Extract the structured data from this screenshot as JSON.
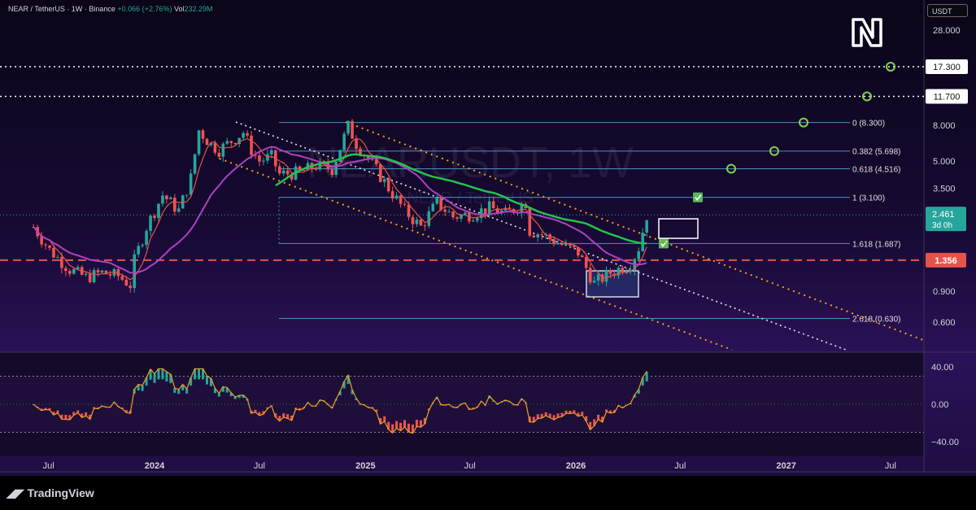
{
  "header": {
    "title": "NEAR / TetherUS · 1W · Binance",
    "change": "+0.066 (+2.76%)",
    "volume_label": "Vol",
    "volume_value": "232.29M"
  },
  "currency_badge": "USDT",
  "watermark": {
    "symbol": "NEARUSDT, 1W",
    "sub": "NEAR / TetherUS"
  },
  "brand": "TradingView",
  "colors": {
    "up": "#26a69a",
    "down": "#ef5350",
    "ma_green": "#22c44a",
    "ma_magenta": "#b040c0",
    "ma_red": "#e5534b",
    "fib": "#4a90c8",
    "channel": "#f0a020",
    "trend": "#e6e6e6",
    "level": "#e5534b"
  },
  "chart_data": [
    {
      "type": "candlestick",
      "title": "NEAR / TetherUS · 1W · Binance",
      "scale": "log",
      "ylim": [
        0.5,
        32
      ],
      "price_axis_ticks": [
        "28.000",
        "8.000",
        "5.000",
        "3.500",
        "0.900",
        "0.600"
      ],
      "time_axis_ticks": [
        "Jul",
        "2024",
        "Jul",
        "2025",
        "Jul",
        "2026",
        "Jul",
        "2027",
        "Jul"
      ],
      "current_price": "2.461",
      "countdown": "3d 0h",
      "horizontal_levels": [
        {
          "label": "17.300",
          "value": 17.3
        },
        {
          "label": "11.700",
          "value": 11.7
        },
        {
          "label": "1.356",
          "value": 1.356
        }
      ],
      "fibonacci": [
        {
          "label": "0 (8.300)",
          "value": 8.3
        },
        {
          "label": "0.382 (5.698)",
          "value": 5.698
        },
        {
          "label": "0.618 (4.516)",
          "value": 4.516
        },
        {
          "label": "1 (3.100)",
          "value": 3.1
        },
        {
          "label": "1.618 (1.687)",
          "value": 1.687
        },
        {
          "label": "2.618 (0.630)",
          "value": 0.63
        }
      ],
      "price_series": [
        [
          "2023-06-05",
          2.1
        ],
        [
          "2023-07-03",
          1.55
        ],
        [
          "2023-08-07",
          1.2
        ],
        [
          "2023-09-04",
          1.08
        ],
        [
          "2023-10-02",
          1.15
        ],
        [
          "2023-10-30",
          1.1
        ],
        [
          "2023-11-20",
          0.98
        ],
        [
          "2023-11-27",
          1.35
        ],
        [
          "2023-12-18",
          2.1
        ],
        [
          "2024-01-15",
          3.2
        ],
        [
          "2024-02-12",
          2.6
        ],
        [
          "2024-03-04",
          4.0
        ],
        [
          "2024-03-18",
          7.5
        ],
        [
          "2024-04-08",
          6.2
        ],
        [
          "2024-04-22",
          5.8
        ],
        [
          "2024-05-13",
          6.5
        ],
        [
          "2024-06-03",
          7.3
        ],
        [
          "2024-06-17",
          5.8
        ],
        [
          "2024-07-01",
          5.0
        ],
        [
          "2024-07-22",
          5.3
        ],
        [
          "2024-08-05",
          4.2
        ],
        [
          "2024-09-09",
          4.3
        ],
        [
          "2024-10-07",
          4.7
        ],
        [
          "2024-11-04",
          4.5
        ],
        [
          "2024-12-02",
          7.9
        ],
        [
          "2024-12-16",
          6.3
        ],
        [
          "2025-01-13",
          4.8
        ],
        [
          "2025-02-10",
          3.5
        ],
        [
          "2025-03-10",
          2.6
        ],
        [
          "2025-04-07",
          2.1
        ],
        [
          "2025-05-05",
          2.9
        ],
        [
          "2025-06-02",
          2.4
        ],
        [
          "2025-07-07",
          2.5
        ],
        [
          "2025-08-04",
          2.7
        ],
        [
          "2025-09-01",
          2.5
        ],
        [
          "2025-10-06",
          2.9
        ],
        [
          "2025-10-13",
          2.0
        ],
        [
          "2025-11-03",
          1.9
        ],
        [
          "2025-12-01",
          1.7
        ],
        [
          "2026-01-05",
          1.5
        ],
        [
          "2026-02-02",
          1.0
        ],
        [
          "2026-03-02",
          1.15
        ],
        [
          "2026-04-06",
          1.3
        ],
        [
          "2026-04-20",
          1.6
        ],
        [
          "2026-05-04",
          2.461
        ]
      ],
      "oscillator": {
        "ylim": [
          -40,
          40
        ],
        "ticks": [
          "40.00",
          "0.00",
          "−40.00"
        ]
      }
    }
  ]
}
